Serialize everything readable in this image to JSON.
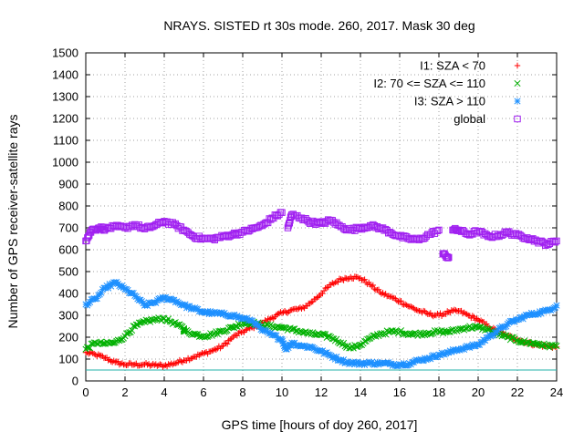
{
  "chart_data": {
    "type": "scatter",
    "title": "NRAYS. SISTED rt 30s mode. 260, 2017. Mask 30 deg",
    "xlabel": "GPS time [hours of doy 260, 2017]",
    "ylabel": "Number of GPS receiver-satellite rays",
    "xlim": [
      0,
      24
    ],
    "ylim": [
      0,
      1500
    ],
    "xticks": [
      "0",
      "2",
      "4",
      "6",
      "8",
      "10",
      "12",
      "14",
      "16",
      "18",
      "20",
      "22",
      "24"
    ],
    "yticks": [
      "0",
      "100",
      "200",
      "300",
      "400",
      "500",
      "600",
      "700",
      "800",
      "900",
      "1000",
      "1100",
      "1200",
      "1300",
      "1400",
      "1500"
    ],
    "grid": true,
    "legend_position": "top-right",
    "threshold_line": {
      "y": 50,
      "color": "#20b2aa"
    },
    "series": [
      {
        "name": "I1: SZA < 70",
        "marker": "plus",
        "color": "#ff0000",
        "points": [
          [
            0,
            130
          ],
          [
            0.5,
            120
          ],
          [
            1,
            105
          ],
          [
            1.5,
            85
          ],
          [
            2,
            75
          ],
          [
            2.5,
            75
          ],
          [
            3,
            75
          ],
          [
            3.5,
            72
          ],
          [
            4,
            70
          ],
          [
            4.5,
            80
          ],
          [
            5,
            95
          ],
          [
            5.5,
            110
          ],
          [
            6,
            125
          ],
          [
            6.5,
            140
          ],
          [
            7,
            160
          ],
          [
            7.5,
            200
          ],
          [
            8,
            225
          ],
          [
            8.5,
            245
          ],
          [
            9,
            265
          ],
          [
            9.5,
            290
          ],
          [
            10,
            310
          ],
          [
            10.5,
            325
          ],
          [
            11,
            330
          ],
          [
            11.5,
            360
          ],
          [
            12,
            400
          ],
          [
            12.5,
            440
          ],
          [
            13,
            465
          ],
          [
            13.5,
            475
          ],
          [
            14,
            470
          ],
          [
            14.5,
            440
          ],
          [
            15,
            405
          ],
          [
            15.5,
            385
          ],
          [
            16,
            365
          ],
          [
            16.5,
            340
          ],
          [
            17,
            320
          ],
          [
            17.5,
            305
          ],
          [
            18,
            300
          ],
          [
            18.5,
            315
          ],
          [
            19,
            320
          ],
          [
            19.5,
            300
          ],
          [
            20,
            280
          ],
          [
            20.5,
            250
          ],
          [
            21,
            225
          ],
          [
            21.5,
            205
          ],
          [
            22,
            190
          ],
          [
            22.5,
            175
          ],
          [
            23,
            165
          ],
          [
            23.5,
            160
          ],
          [
            24,
            155
          ]
        ]
      },
      {
        "name": "I2: 70 <= SZA <= 110",
        "marker": "cross",
        "color": "#00b000",
        "points": [
          [
            0,
            145
          ],
          [
            0.5,
            175
          ],
          [
            1,
            170
          ],
          [
            1.5,
            175
          ],
          [
            2,
            205
          ],
          [
            2.5,
            250
          ],
          [
            3,
            270
          ],
          [
            3.5,
            280
          ],
          [
            4,
            285
          ],
          [
            4.5,
            265
          ],
          [
            5,
            240
          ],
          [
            5,
            230
          ],
          [
            5.5,
            215
          ],
          [
            6,
            205
          ],
          [
            6.5,
            215
          ],
          [
            7,
            230
          ],
          [
            7.5,
            245
          ],
          [
            8,
            265
          ],
          [
            8.5,
            265
          ],
          [
            9,
            255
          ],
          [
            9.5,
            250
          ],
          [
            10,
            245
          ],
          [
            10.5,
            235
          ],
          [
            11,
            225
          ],
          [
            11.5,
            215
          ],
          [
            12,
            210
          ],
          [
            12.5,
            200
          ],
          [
            13,
            175
          ],
          [
            13.5,
            150
          ],
          [
            14,
            165
          ],
          [
            14.5,
            195
          ],
          [
            15,
            215
          ],
          [
            15.5,
            225
          ],
          [
            16,
            225
          ],
          [
            16.5,
            215
          ],
          [
            17,
            215
          ],
          [
            17.5,
            220
          ],
          [
            18,
            225
          ],
          [
            18.5,
            225
          ],
          [
            19,
            235
          ],
          [
            19.5,
            245
          ],
          [
            20,
            245
          ],
          [
            20.5,
            235
          ],
          [
            21,
            215
          ],
          [
            21.5,
            200
          ],
          [
            22,
            185
          ],
          [
            22.5,
            175
          ],
          [
            23,
            170
          ],
          [
            23.5,
            160
          ],
          [
            24,
            160
          ]
        ]
      },
      {
        "name": "I3: SZA > 110",
        "marker": "star",
        "color": "#1e90ff",
        "points": [
          [
            0,
            350
          ],
          [
            0.5,
            375
          ],
          [
            1,
            425
          ],
          [
            1.5,
            450
          ],
          [
            2,
            420
          ],
          [
            2.5,
            390
          ],
          [
            3,
            345
          ],
          [
            3.5,
            360
          ],
          [
            4,
            380
          ],
          [
            4.5,
            370
          ],
          [
            5,
            345
          ],
          [
            5.5,
            330
          ],
          [
            6,
            315
          ],
          [
            6.5,
            310
          ],
          [
            7,
            305
          ],
          [
            7.5,
            300
          ],
          [
            8,
            285
          ],
          [
            8.5,
            275
          ],
          [
            9,
            230
          ],
          [
            9.5,
            210
          ],
          [
            10,
            190
          ],
          [
            10.2,
            145
          ],
          [
            10.5,
            175
          ],
          [
            11,
            160
          ],
          [
            11.5,
            155
          ],
          [
            12,
            135
          ],
          [
            12.5,
            115
          ],
          [
            13,
            95
          ],
          [
            13.5,
            82
          ],
          [
            14,
            80
          ],
          [
            14.5,
            82
          ],
          [
            15,
            80
          ],
          [
            15.5,
            78
          ],
          [
            16,
            75
          ],
          [
            16.5,
            80
          ],
          [
            17,
            95
          ],
          [
            17.5,
            105
          ],
          [
            18,
            120
          ],
          [
            18.5,
            130
          ],
          [
            19,
            145
          ],
          [
            19.5,
            155
          ],
          [
            20,
            165
          ],
          [
            20.5,
            200
          ],
          [
            21,
            230
          ],
          [
            21.5,
            260
          ],
          [
            22,
            280
          ],
          [
            22.5,
            300
          ],
          [
            23,
            310
          ],
          [
            23.5,
            320
          ],
          [
            24,
            345
          ]
        ]
      },
      {
        "name": "global",
        "marker": "square",
        "color": "#a020f0",
        "points": [
          [
            0,
            640
          ],
          [
            0.3,
            690
          ],
          [
            0.7,
            700
          ],
          [
            1,
            695
          ],
          [
            1.5,
            705
          ],
          [
            2,
            700
          ],
          [
            2.5,
            715
          ],
          [
            3,
            695
          ],
          [
            3.5,
            710
          ],
          [
            4,
            730
          ],
          [
            4.5,
            715
          ],
          [
            5,
            690
          ],
          [
            5.5,
            660
          ],
          [
            6,
            650
          ],
          [
            6.5,
            650
          ],
          [
            7,
            660
          ],
          [
            7.5,
            670
          ],
          [
            8,
            680
          ],
          [
            8.5,
            695
          ],
          [
            9,
            710
          ],
          [
            9.5,
            745
          ],
          [
            10,
            770
          ],
          [
            10.3,
            700
          ],
          [
            10.5,
            760
          ],
          [
            11,
            745
          ],
          [
            11.5,
            725
          ],
          [
            12,
            720
          ],
          [
            12.5,
            735
          ],
          [
            13,
            705
          ],
          [
            13.5,
            690
          ],
          [
            14,
            700
          ],
          [
            14.5,
            710
          ],
          [
            15,
            700
          ],
          [
            15.5,
            680
          ],
          [
            16,
            660
          ],
          [
            16.5,
            650
          ],
          [
            17,
            645
          ],
          [
            17.5,
            670
          ],
          [
            18,
            690
          ],
          [
            18.2,
            580
          ],
          [
            18.5,
            565
          ],
          [
            18.7,
            690
          ],
          [
            19,
            690
          ],
          [
            19.5,
            670
          ],
          [
            20,
            685
          ],
          [
            20.5,
            660
          ],
          [
            21,
            665
          ],
          [
            21.5,
            680
          ],
          [
            22,
            665
          ],
          [
            22.5,
            655
          ],
          [
            23,
            640
          ],
          [
            23.5,
            625
          ],
          [
            24,
            640
          ]
        ]
      }
    ]
  }
}
